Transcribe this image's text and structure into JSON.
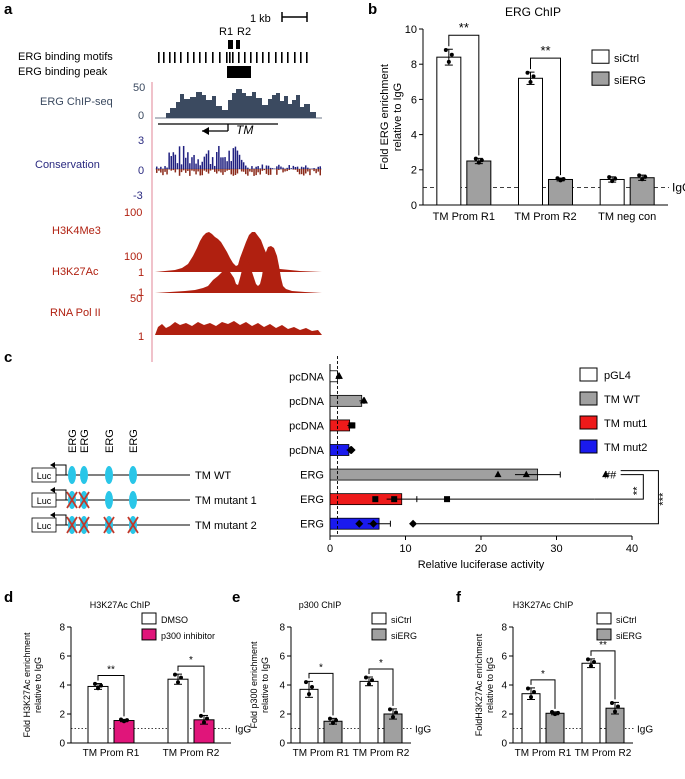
{
  "panels": {
    "a": {
      "letter": "a",
      "scale_bar": "1 kb",
      "motif_label": "ERG binding motifs",
      "peak_label": "ERG binding peak",
      "r1": "R1",
      "r2": "R2",
      "gene_label": "TM",
      "tracks": [
        {
          "name": "ERG ChIP-seq",
          "top_label": "50",
          "bottom_label": "0",
          "color": "#3b4a60"
        },
        {
          "name": "Conservation",
          "top_label": "3",
          "bottom_label": "-3",
          "color": "#2a2a80"
        },
        {
          "name": "H3K4Me3",
          "top_label": "100",
          "bottom_label": "1",
          "color": "#b02010"
        },
        {
          "name": "H3K27Ac",
          "top_label": "100",
          "bottom_label": "1",
          "color": "#b02010"
        },
        {
          "name": "RNA Pol II",
          "top_label": "50",
          "bottom_label": "1",
          "color": "#b02010"
        }
      ],
      "extra_labels": {
        "cons_zero": "0"
      }
    },
    "c_schematic": {
      "erg_label": "ERG",
      "luc_label": "Luc",
      "constructs": [
        "TM WT",
        "TM mutant 1",
        "TM mutant 2"
      ]
    }
  },
  "chart_data": [
    {
      "id": "b",
      "letter": "b",
      "type": "bar",
      "title": "ERG ChIP",
      "ylabel": "Fold ERG enrichment relative to IgG",
      "ylabel_lines": [
        "Fold ERG enrichment",
        "relative to IgG"
      ],
      "categories": [
        "TM Prom R1",
        "TM Prom R2",
        "TM neg con"
      ],
      "ylim": [
        0,
        10
      ],
      "yticks": [
        0,
        2,
        4,
        6,
        8,
        10
      ],
      "series": [
        {
          "name": "siCtrl",
          "color": "#ffffff",
          "values": [
            8.4,
            7.2,
            1.45
          ],
          "errors": [
            0.45,
            0.35,
            0.15
          ]
        },
        {
          "name": "siERG",
          "color": "#a0a0a0",
          "values": [
            2.5,
            1.45,
            1.55
          ],
          "errors": [
            0.15,
            0.08,
            0.15
          ]
        }
      ],
      "reference": {
        "value": 1,
        "label": "IgG"
      },
      "significance": [
        {
          "label": "**",
          "category": 0
        },
        {
          "label": "**",
          "category": 1
        }
      ]
    },
    {
      "id": "c",
      "letter": "c",
      "type": "bar",
      "orientation": "horizontal",
      "xlabel": "Relative luciferase activity",
      "xlim": [
        0,
        40
      ],
      "xticks": [
        0,
        10,
        20,
        30,
        40
      ],
      "rows": [
        {
          "label": "pcDNA",
          "series": "pGL4",
          "value": 1.0,
          "error": 0.2,
          "color": "#ffffff"
        },
        {
          "label": "pcDNA",
          "series": "TM WT",
          "value": 4.2,
          "error": 0.3,
          "color": "#a0a0a0"
        },
        {
          "label": "pcDNA",
          "series": "TM mut1",
          "value": 2.6,
          "error": 0.3,
          "color": "#ee1a1a"
        },
        {
          "label": "pcDNA",
          "series": "TM mut2",
          "value": 2.5,
          "error": 0.3,
          "color": "#1a1aee"
        },
        {
          "label": "ERG",
          "series": "TM WT",
          "value": 27.5,
          "error": 3.0,
          "color": "#a0a0a0"
        },
        {
          "label": "ERG",
          "series": "TM mut1",
          "value": 9.5,
          "error": 2.0,
          "color": "#ee1a1a"
        },
        {
          "label": "ERG",
          "series": "TM mut2",
          "value": 6.5,
          "error": 1.5,
          "color": "#1a1aee"
        }
      ],
      "legend": [
        {
          "name": "pGL4",
          "color": "#ffffff"
        },
        {
          "name": "TM WT",
          "color": "#a0a0a0"
        },
        {
          "name": "TM mut1",
          "color": "#ee1a1a"
        },
        {
          "name": "TM mut2",
          "color": "#1a1aee"
        }
      ],
      "reference": 1,
      "annotations": {
        "hash": "##",
        "sig1": "**",
        "sig2": "***"
      }
    },
    {
      "id": "d",
      "letter": "d",
      "type": "bar",
      "title": "H3K27Ac ChIP",
      "ylabel": "Fold H3K27Ac enrichment relative to IgG",
      "ylabel_lines": [
        "Fold H3K27Ac enrichment",
        "relative to IgG"
      ],
      "categories": [
        "TM Prom R1",
        "TM Prom R2"
      ],
      "ylim": [
        0,
        8
      ],
      "yticks": [
        0,
        2,
        4,
        6,
        8
      ],
      "series": [
        {
          "name": "DMSO",
          "color": "#ffffff",
          "values": [
            3.9,
            4.4
          ],
          "errors": [
            0.2,
            0.35
          ]
        },
        {
          "name": "p300 inhibitor",
          "color": "#e0157a",
          "values": [
            1.55,
            1.6
          ],
          "errors": [
            0.08,
            0.3
          ]
        }
      ],
      "reference": {
        "value": 1,
        "label": "IgG"
      },
      "significance": [
        {
          "label": "**",
          "category": 0
        },
        {
          "label": "*",
          "category": 1
        }
      ]
    },
    {
      "id": "e",
      "letter": "e",
      "type": "bar",
      "title": "p300 ChIP",
      "ylabel": "Fold p300 enrichment relative to IgG",
      "ylabel_lines": [
        "Fold p300 enrichment",
        "relative to IgG"
      ],
      "categories": [
        "TM Prom R1",
        "TM Prom R2"
      ],
      "ylim": [
        0,
        8
      ],
      "yticks": [
        0,
        2,
        4,
        6,
        8
      ],
      "series": [
        {
          "name": "siCtrl",
          "color": "#ffffff",
          "values": [
            3.7,
            4.25
          ],
          "errors": [
            0.55,
            0.3
          ]
        },
        {
          "name": "siERG",
          "color": "#a0a0a0",
          "values": [
            1.5,
            2.0
          ],
          "errors": [
            0.2,
            0.35
          ]
        }
      ],
      "reference": {
        "value": 1,
        "label": "IgG"
      },
      "significance": [
        {
          "label": "*",
          "category": 0
        },
        {
          "label": "*",
          "category": 1
        }
      ]
    },
    {
      "id": "f",
      "letter": "f",
      "type": "bar",
      "title": "H3K27Ac ChIP",
      "ylabel": "FoldH3K27Ac enrichment relative to IgG",
      "ylabel_lines": [
        "FoldH3K27Ac enrichment",
        "relative to IgG"
      ],
      "categories": [
        "TM Prom R1",
        "TM Prom R2"
      ],
      "ylim": [
        0,
        8
      ],
      "yticks": [
        0,
        2,
        4,
        6,
        8
      ],
      "series": [
        {
          "name": "siCtrl",
          "color": "#ffffff",
          "values": [
            3.4,
            5.5
          ],
          "errors": [
            0.4,
            0.3
          ]
        },
        {
          "name": "siERG",
          "color": "#a0a0a0",
          "values": [
            2.05,
            2.4
          ],
          "errors": [
            0.1,
            0.4
          ]
        }
      ],
      "reference": {
        "value": 1,
        "label": "IgG"
      },
      "significance": [
        {
          "label": "*",
          "category": 0
        },
        {
          "label": "**",
          "category": 1
        }
      ]
    }
  ]
}
